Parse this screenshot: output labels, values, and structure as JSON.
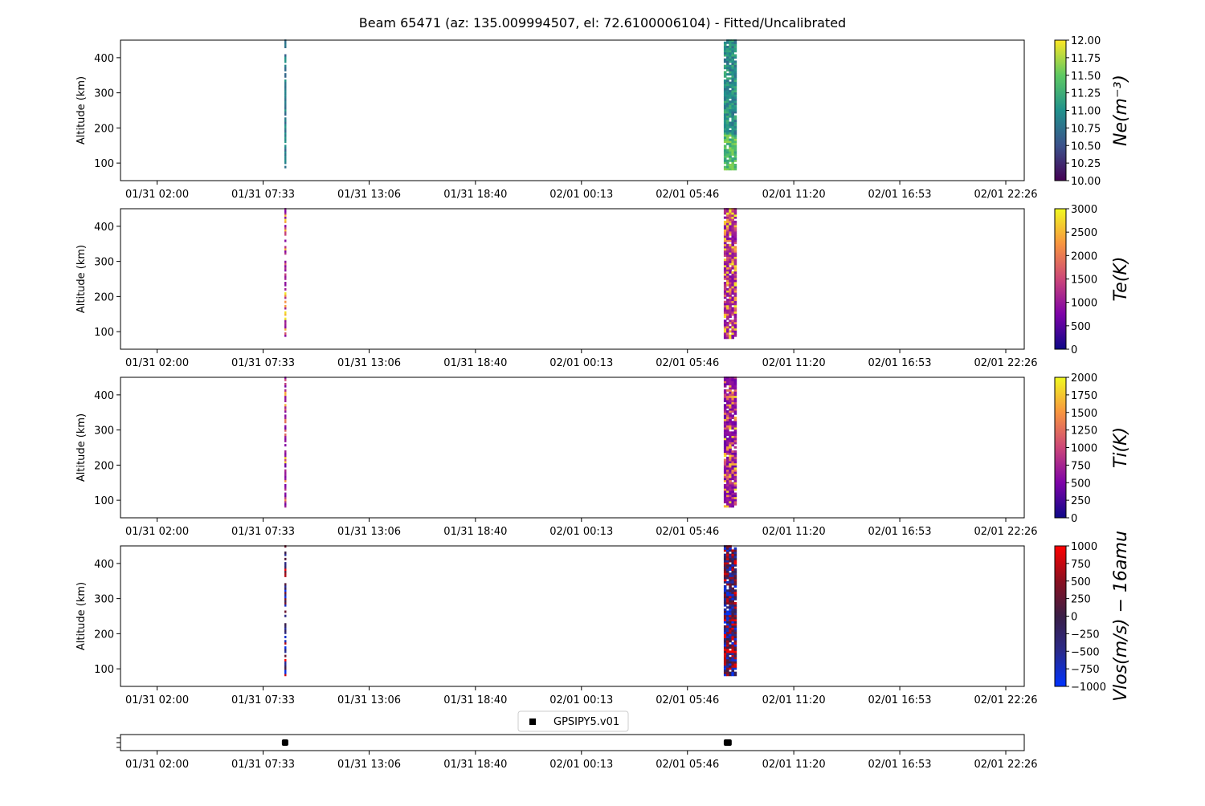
{
  "chart_data": {
    "type": "heatmap",
    "title": "Beam 65471 (az: 135.009994507, el: 72.6100006104) - Fitted/Uncalibrated",
    "x_tick_labels": [
      "01/31 02:00",
      "01/31 07:33",
      "01/31 13:06",
      "01/31 18:40",
      "02/01 00:13",
      "02/01 05:46",
      "02/01 11:20",
      "02/01 16:53",
      "02/01 22:26"
    ],
    "x_tick_times": [
      "01/31 02:00",
      "01/31 07:33",
      "01/31 13:06",
      "01/31 18:40",
      "02/01 00:13",
      "02/01 05:46",
      "02/01 11:20",
      "02/01 16:53",
      "02/01 22:26"
    ],
    "xlim": [
      "01/31 00:05",
      "02/01 23:24"
    ],
    "ylim": [
      50,
      450
    ],
    "y_ticks": [
      100,
      200,
      300,
      400
    ],
    "ylabel": "Altitude (km)",
    "data_bursts": [
      {
        "start": "01/31 08:40",
        "end": "01/31 08:44"
      },
      {
        "start": "02/01 07:40",
        "end": "02/01 08:20"
      }
    ],
    "panels": [
      {
        "colorbar_label": "Ne(m⁻³)",
        "colormap": [
          "#440154",
          "#3b528b",
          "#21918c",
          "#5ec962",
          "#fde725"
        ],
        "range": [
          10,
          12
        ],
        "colorbar_ticks": [
          "10.00",
          "10.25",
          "10.50",
          "10.75",
          "11.00",
          "11.25",
          "11.50",
          "11.75",
          "12.00"
        ]
      },
      {
        "colorbar_label": "Te(K)",
        "colormap": [
          "#0d0887",
          "#7e03a8",
          "#cc4778",
          "#f89540",
          "#f0f921"
        ],
        "range": [
          0,
          3000
        ],
        "colorbar_ticks": [
          "0",
          "500",
          "1000",
          "1500",
          "2000",
          "2500",
          "3000"
        ]
      },
      {
        "colorbar_label": "Ti(K)",
        "colormap": [
          "#0d0887",
          "#7e03a8",
          "#cc4778",
          "#f89540",
          "#f0f921"
        ],
        "range": [
          0,
          2000
        ],
        "colorbar_ticks": [
          "0",
          "250",
          "500",
          "750",
          "1000",
          "1250",
          "1500",
          "1750",
          "2000"
        ]
      },
      {
        "colorbar_label": "Vlos(m/s) − 16amu",
        "colormap": [
          "#0033ff",
          "#2a2a8a",
          "#3a1e46",
          "#8a1020",
          "#ff0000"
        ],
        "range": [
          -1000,
          1000
        ],
        "colorbar_ticks": [
          "−1000",
          "−750",
          "−500",
          "−250",
          "0",
          "250",
          "500",
          "750",
          "1000"
        ]
      }
    ],
    "bottom_panel": {
      "legend": "GPSIPY5.v01",
      "legend_placement": "top-center",
      "markers": [
        {
          "start": "01/31 08:40",
          "end": "01/31 08:44"
        },
        {
          "start": "02/01 07:40",
          "end": "02/01 08:05"
        }
      ]
    }
  }
}
